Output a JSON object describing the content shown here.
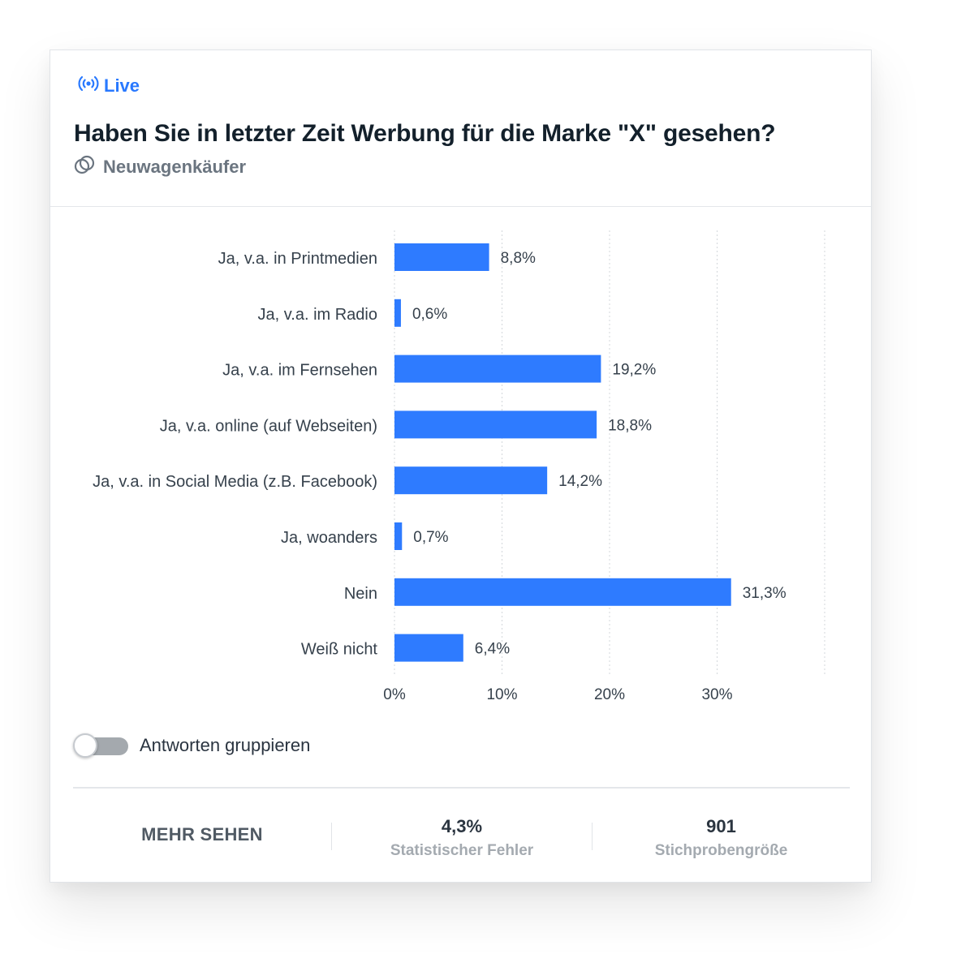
{
  "live": {
    "label": "Live",
    "icon": "broadcast-icon",
    "color": "#2979ff"
  },
  "title": "Haben Sie in letzter Zeit Werbung für die Marke \"X\" gesehen?",
  "subtitle": {
    "label": "Neuwagenkäufer",
    "icon": "filter-circles-icon"
  },
  "chart_data": {
    "type": "bar",
    "orientation": "horizontal",
    "categories": [
      "Ja, v.a. in Printmedien",
      "Ja, v.a. im Radio",
      "Ja, v.a. im Fernsehen",
      "Ja, v.a. online (auf Webseiten)",
      "Ja, v.a. in Social Media (z.B. Facebook)",
      "Ja, woanders",
      "Nein",
      "Weiß nicht"
    ],
    "values": [
      8.8,
      0.6,
      19.2,
      18.8,
      14.2,
      0.7,
      31.3,
      6.4
    ],
    "value_labels": [
      "8,8%",
      "0,6%",
      "19,2%",
      "18,8%",
      "14,2%",
      "0,7%",
      "31,3%",
      "6,4%"
    ],
    "xticks": [
      0,
      10,
      20,
      30
    ],
    "xtick_labels": [
      "0%",
      "10%",
      "20%",
      "30%"
    ],
    "xlim": [
      0,
      40
    ],
    "grid": true,
    "bar_color": "#2e7bff"
  },
  "toggle": {
    "label": "Antworten gruppieren",
    "state": "off"
  },
  "footer": {
    "more_label": "MEHR SEHEN",
    "stats": [
      {
        "value": "4,3%",
        "label": "Statistischer Fehler"
      },
      {
        "value": "901",
        "label": "Stichprobengröße"
      }
    ]
  }
}
